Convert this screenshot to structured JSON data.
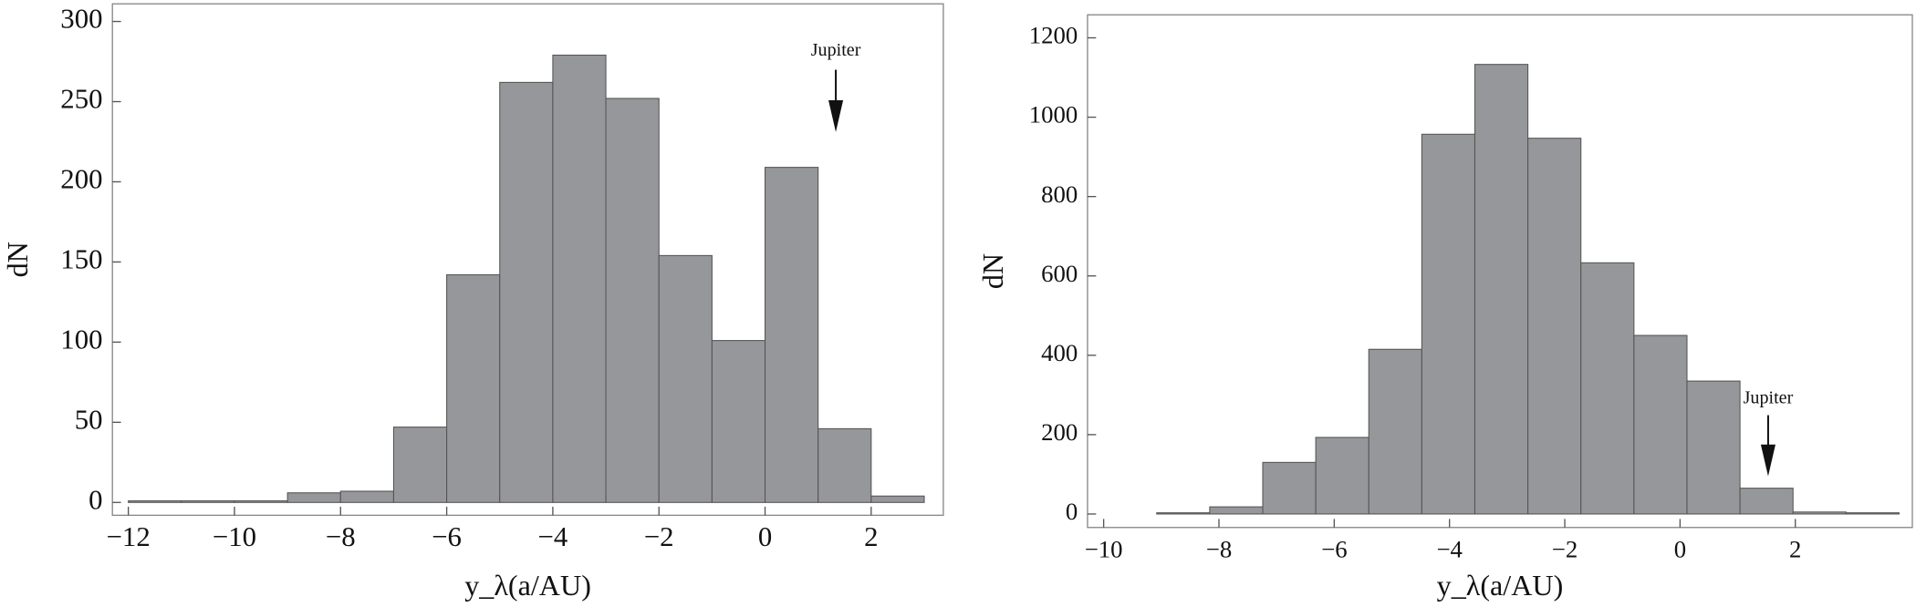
{
  "chart_data": [
    {
      "type": "histogram",
      "x_label": "y_λ(a/AU)",
      "y_label": "dN",
      "bins": [
        -12,
        -11,
        -10,
        -9,
        -8,
        -7,
        -6,
        -5,
        -4,
        -3,
        -2,
        -1,
        0,
        1,
        2,
        3
      ],
      "values": [
        1,
        1,
        1,
        6,
        7,
        47,
        142,
        262,
        279,
        252,
        154,
        101,
        209,
        46,
        4
      ],
      "color": "#96979b",
      "xlim": [
        -12.3,
        3.36
      ],
      "ylim": [
        -8,
        311
      ],
      "xticks": [
        {
          "value": -12,
          "label": "−12"
        },
        {
          "value": -10,
          "label": "−10"
        },
        {
          "value": -8,
          "label": "−8"
        },
        {
          "value": -6,
          "label": "−6"
        },
        {
          "value": -4,
          "label": "−4"
        },
        {
          "value": -2,
          "label": "−2"
        },
        0,
        2
      ],
      "yticks": [
        0,
        50,
        100,
        150,
        200,
        250,
        300
      ],
      "annotation": "Jupiter"
    },
    {
      "type": "histogram",
      "x_label": "y_λ(a/AU)",
      "y_label": "dN",
      "bins": [
        -10,
        -9.08,
        -8.16,
        -7.24,
        -6.32,
        -5.4,
        -4.48,
        -3.56,
        -2.64,
        -1.72,
        -0.8,
        0.12,
        1.04,
        1.96,
        2.88,
        3.8
      ],
      "values": [
        0,
        3,
        18,
        130,
        193,
        415,
        957,
        1133,
        947,
        633,
        450,
        335,
        65,
        5,
        3
      ],
      "color": "#96979b",
      "xlim": [
        -10.28,
        4.03
      ],
      "ylim": [
        -34,
        1258
      ],
      "xticks": [
        {
          "value": -10,
          "label": "−10"
        },
        {
          "value": -8,
          "label": "−8"
        },
        {
          "value": -6,
          "label": "−6"
        },
        {
          "value": -4,
          "label": "−4"
        },
        {
          "value": -2,
          "label": "−2"
        },
        0,
        2
      ],
      "yticks": [
        0,
        200,
        400,
        600,
        800,
        1000,
        1200
      ],
      "annotation": "Jupiter"
    }
  ]
}
